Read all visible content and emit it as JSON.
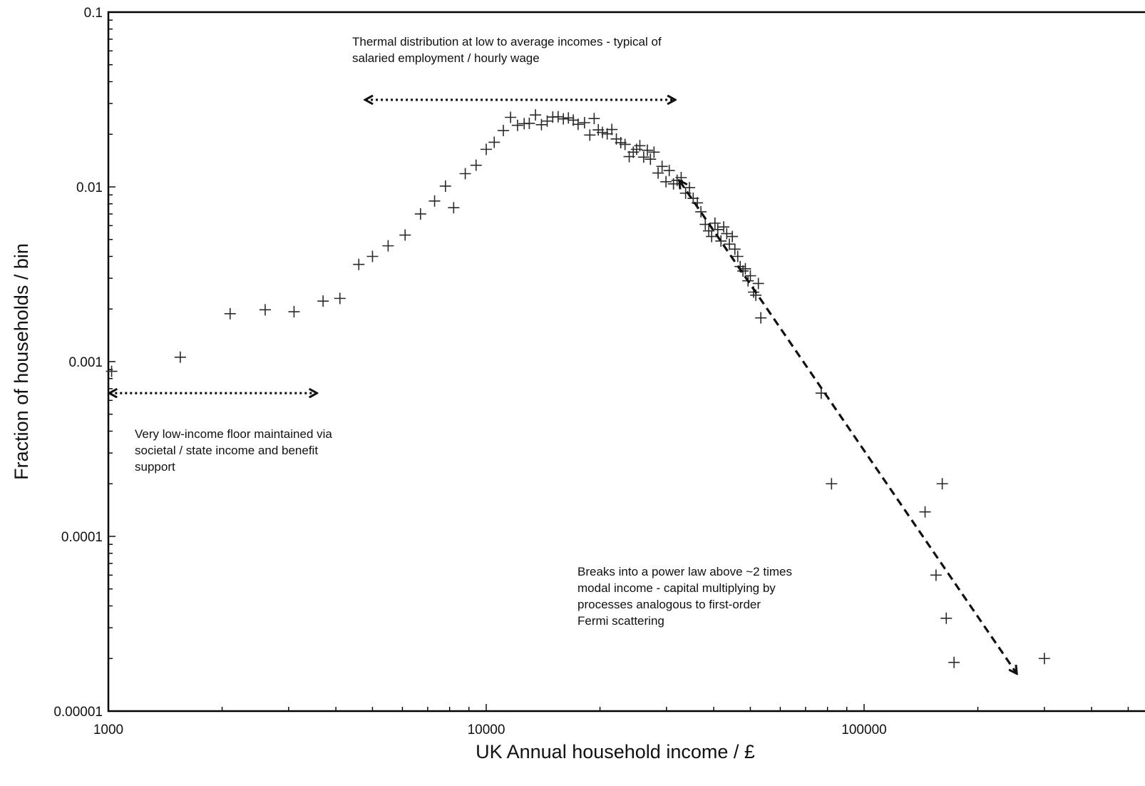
{
  "chart_data": {
    "type": "scatter",
    "title": "",
    "xlabel": "UK Annual household income / £",
    "ylabel": "Fraction of households / bin",
    "xscale": "log",
    "yscale": "log",
    "xlim": [
      1000,
      600000
    ],
    "ylim": [
      1e-05,
      0.1
    ],
    "grid": false,
    "marker": "plus",
    "x_ticks": [
      {
        "value": 1000,
        "label": "1000"
      },
      {
        "value": 10000,
        "label": "10000"
      },
      {
        "value": 100000,
        "label": "100000"
      }
    ],
    "y_ticks": [
      {
        "value": 0.1,
        "label": "0.1"
      },
      {
        "value": 0.01,
        "label": "0.01"
      },
      {
        "value": 0.001,
        "label": "0.001"
      },
      {
        "value": 0.0001,
        "label": "0.0001"
      },
      {
        "value": 1e-05,
        "label": "0.00001"
      }
    ],
    "points": [
      [
        1020,
        0.00088
      ],
      [
        1550,
        0.00106
      ],
      [
        2100,
        0.00188
      ],
      [
        2600,
        0.00198
      ],
      [
        3100,
        0.00193
      ],
      [
        3700,
        0.00222
      ],
      [
        4100,
        0.0023
      ],
      [
        4600,
        0.0036
      ],
      [
        5000,
        0.004
      ],
      [
        5500,
        0.0046
      ],
      [
        6100,
        0.0053
      ],
      [
        6700,
        0.007
      ],
      [
        7300,
        0.0083
      ],
      [
        7800,
        0.0101
      ],
      [
        8200,
        0.0076
      ],
      [
        8800,
        0.0119
      ],
      [
        9400,
        0.0133
      ],
      [
        10000,
        0.0164
      ],
      [
        10500,
        0.018
      ],
      [
        11100,
        0.021
      ],
      [
        11600,
        0.025
      ],
      [
        12100,
        0.0225
      ],
      [
        12600,
        0.023
      ],
      [
        13000,
        0.0231
      ],
      [
        13500,
        0.0258
      ],
      [
        14000,
        0.0227
      ],
      [
        14500,
        0.0238
      ],
      [
        15000,
        0.0251
      ],
      [
        15500,
        0.0252
      ],
      [
        16000,
        0.0245
      ],
      [
        16500,
        0.0248
      ],
      [
        17000,
        0.0241
      ],
      [
        17500,
        0.0228
      ],
      [
        18200,
        0.0233
      ],
      [
        18800,
        0.0198
      ],
      [
        19300,
        0.0246
      ],
      [
        19800,
        0.0212
      ],
      [
        20300,
        0.0205
      ],
      [
        20900,
        0.0201
      ],
      [
        21500,
        0.0213
      ],
      [
        22100,
        0.0188
      ],
      [
        22700,
        0.0179
      ],
      [
        23300,
        0.0175
      ],
      [
        23900,
        0.0149
      ],
      [
        24500,
        0.0158
      ],
      [
        25000,
        0.0164
      ],
      [
        25500,
        0.0172
      ],
      [
        26100,
        0.0148
      ],
      [
        26700,
        0.0162
      ],
      [
        27200,
        0.0144
      ],
      [
        27800,
        0.0158
      ],
      [
        28500,
        0.012
      ],
      [
        29200,
        0.0131
      ],
      [
        29900,
        0.0107
      ],
      [
        30500,
        0.0124
      ],
      [
        31300,
        0.0104
      ],
      [
        32000,
        0.0109
      ],
      [
        32800,
        0.0113
      ],
      [
        33700,
        0.0092
      ],
      [
        34500,
        0.0099
      ],
      [
        35300,
        0.0086
      ],
      [
        36200,
        0.0081
      ],
      [
        37000,
        0.0072
      ],
      [
        38000,
        0.0061
      ],
      [
        38800,
        0.0056
      ],
      [
        39500,
        0.0052
      ],
      [
        40300,
        0.0062
      ],
      [
        41000,
        0.0057
      ],
      [
        41800,
        0.0049
      ],
      [
        42500,
        0.0059
      ],
      [
        43300,
        0.0054
      ],
      [
        44000,
        0.0047
      ],
      [
        44800,
        0.0052
      ],
      [
        45500,
        0.0044
      ],
      [
        46300,
        0.004
      ],
      [
        47000,
        0.0035
      ],
      [
        47800,
        0.0033
      ],
      [
        48500,
        0.0034
      ],
      [
        49300,
        0.0029
      ],
      [
        50000,
        0.0031
      ],
      [
        51000,
        0.0025
      ],
      [
        51700,
        0.0024
      ],
      [
        52500,
        0.0028
      ],
      [
        53300,
        0.00178
      ],
      [
        77000,
        0.00066
      ],
      [
        82000,
        0.0002
      ],
      [
        145000,
        0.000138
      ],
      [
        155000,
        6e-05
      ],
      [
        161000,
        0.0002
      ],
      [
        165000,
        3.4e-05
      ],
      [
        173000,
        1.9e-05
      ],
      [
        300000,
        2e-05
      ]
    ],
    "annotations": [
      {
        "lines": [
          "Thermal distribution at low to average incomes  - typical of",
          "salaried employment / hourly wage"
        ],
        "arrow": {
          "style": "dotted",
          "heads": "both",
          "from": [
            4800,
            0.0315
          ],
          "to": [
            31500,
            0.0315
          ]
        }
      },
      {
        "lines": [
          "Very low-income floor maintained via",
          "societal / state income and benefit",
          "support"
        ],
        "arrow": {
          "style": "dotted",
          "heads": "both",
          "from": [
            1010,
            0.00066
          ],
          "to": [
            3550,
            0.00066
          ]
        }
      },
      {
        "lines": [
          "Breaks into a power law above ~2 times",
          "modal income - capital multiplying by",
          "processes analogous to first-order",
          "Fermi scattering"
        ],
        "arrow": {
          "style": "dashed",
          "heads": "both",
          "from": [
            32500,
            0.0108
          ],
          "to": [
            253000,
            1.65e-05
          ]
        }
      }
    ]
  }
}
